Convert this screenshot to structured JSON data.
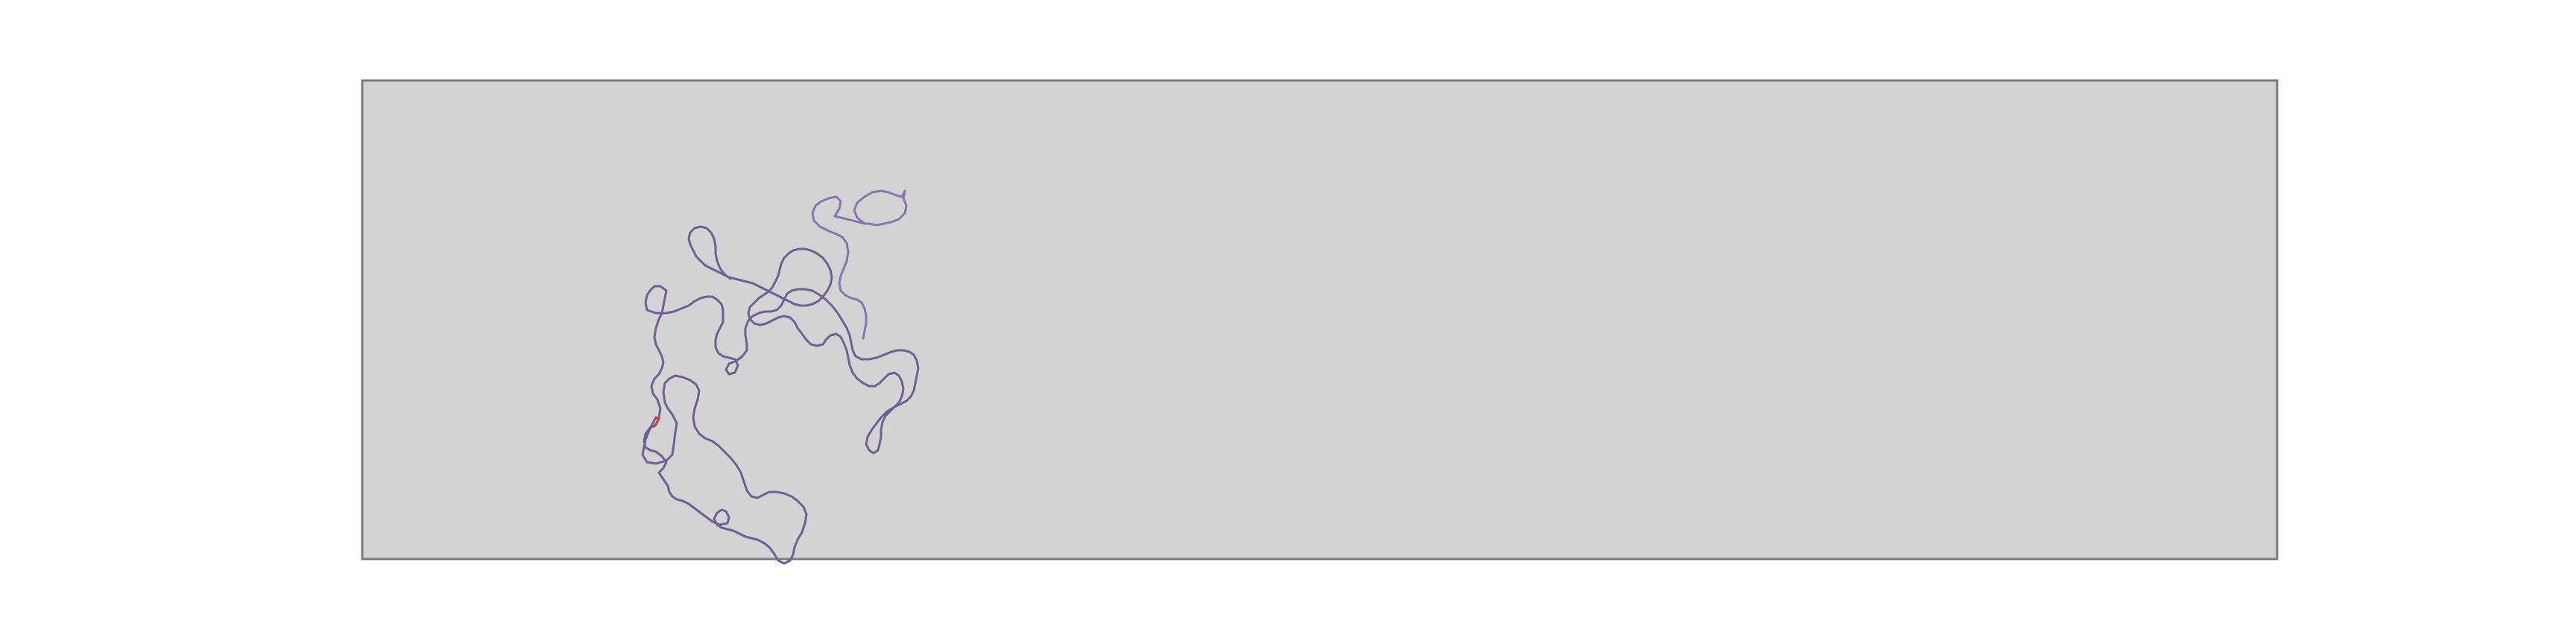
{
  "chart_data": {
    "type": "line",
    "title": "",
    "xlabel": "",
    "ylabel": "",
    "grid": false,
    "axes_visible": false,
    "xlim": [
      0,
      1000
    ],
    "ylim": [
      0,
      1000
    ],
    "series": [
      {
        "x": [
          224,
          230,
          236,
          228,
          220,
          211,
          205,
          208,
          218,
          226,
          218,
          212,
          205,
          198,
          203,
          210,
          215,
          222,
          230,
          236,
          241,
          248,
          256,
          262,
          270,
          262,
          258,
          246,
          237,
          230,
          238,
          244,
          252,
          258,
          252,
          244,
          238,
          232,
          238,
          245,
          250,
          254,
          258,
          262,
          270,
          276,
          280,
          286,
          290,
          294,
          300,
          306,
          310,
          316,
          322,
          328,
          330,
          334,
          338,
          342,
          344,
          346,
          350,
          352,
          354,
          356,
          356,
          350,
          346,
          342,
          336,
          330,
          322,
          316,
          310,
          306,
          300,
          296,
          292,
          288,
          284,
          280,
          276,
          272,
          266,
          264,
          262,
          258,
          254,
          252,
          250,
          246,
          244,
          240,
          238,
          234,
          230,
          226,
          222,
          218,
          212,
          208,
          202,
          194,
          186,
          180,
          176,
          172,
          168,
          170,
          174,
          182,
          190,
          196,
          202,
          208,
          214,
          220,
          226,
          232,
          238,
          242,
          236,
          230,
          226,
          222,
          218,
          214,
          210,
          206,
          202,
          196,
          190,
          184,
          178,
          172,
          166,
          162,
          158,
          154,
          150,
          152,
          158,
          164,
          170,
          176,
          182,
          188,
          194,
          200,
          206,
          212,
          218,
          222,
          226,
          230,
          236,
          240,
          246,
          252,
          258,
          262,
          268,
          272,
          276,
          280,
          286,
          290,
          294,
          298,
          302,
          306,
          310,
          316,
          322,
          328,
          334,
          340,
          346,
          352,
          358,
          364,
          370,
          376,
          380,
          384,
          386,
          388,
          390,
          392,
          388,
          384,
          380,
          376,
          372,
          368,
          364,
          362,
          358,
          354,
          350,
          346,
          342,
          338,
          334,
          330,
          326,
          322,
          318,
          314,
          310,
          306,
          302,
          298,
          294,
          290,
          286,
          282,
          278,
          276,
          274,
          272,
          270,
          268,
          266,
          264,
          262,
          258,
          254,
          250,
          246,
          242,
          238,
          234,
          230,
          226,
          222,
          218,
          214,
          210,
          206,
          202,
          198,
          194,
          190,
          186,
          182,
          178,
          174,
          172,
          170,
          168,
          166,
          170,
          176,
          182,
          188,
          194,
          200,
          206,
          212,
          214,
          216,
          218,
          220,
          222,
          224,
          226,
          228,
          226,
          224,
          222,
          220,
          218,
          216,
          214,
          212,
          210,
          206,
          202,
          200,
          198,
          196,
          194,
          192,
          190,
          188,
          186,
          184,
          182,
          180,
          176,
          172,
          168,
          166,
          164,
          162,
          160,
          158,
          156,
          154,
          152,
          150,
          148,
          146,
          144,
          142,
          140,
          138,
          136,
          134,
          132,
          130,
          128,
          126,
          124,
          122,
          120,
          118,
          116,
          114,
          112,
          110,
          108,
          106,
          104,
          102,
          100,
          98,
          96,
          94,
          92,
          90,
          88,
          86,
          84,
          82,
          80,
          78,
          76,
          74,
          72,
          70,
          68,
          66,
          64,
          62,
          60,
          58,
          56,
          54,
          52,
          50
        ]
      }
    ]
  }
}
